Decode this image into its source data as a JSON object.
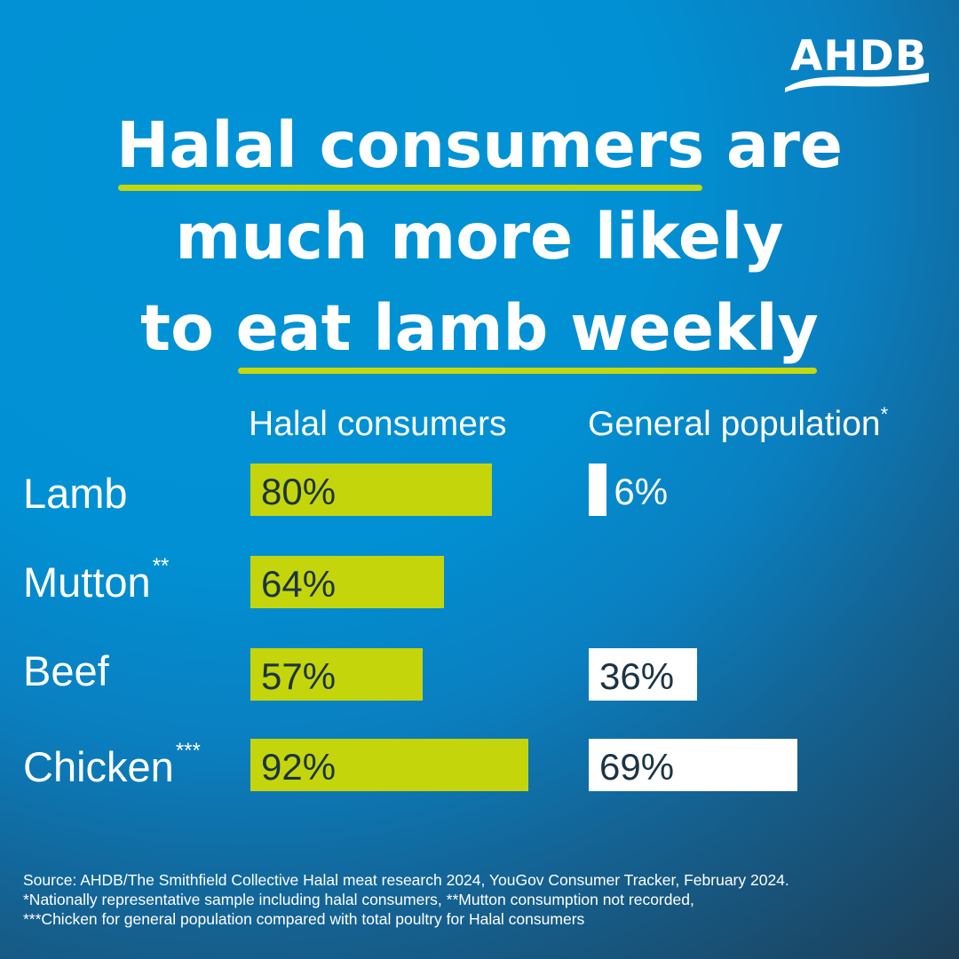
{
  "logo": {
    "text": "AHDB"
  },
  "title": {
    "line1_highlight": "Halal consumers",
    "line1_rest": " are",
    "line2": "much more likely",
    "line3_start": "to ",
    "line3_highlight": "eat lamb weekly"
  },
  "colors": {
    "accent": "#c4d50c",
    "bar_general": "#ffffff",
    "background": "#0193d6",
    "value_text": "#1b3444"
  },
  "chart_data": {
    "type": "bar",
    "orientation": "horizontal",
    "categories": [
      "Lamb",
      "Mutton",
      "Beef",
      "Chicken"
    ],
    "category_marks": [
      "",
      "**",
      "",
      "***"
    ],
    "series": [
      {
        "name": "Halal consumers",
        "values": [
          80,
          64,
          57,
          92
        ],
        "value_labels": [
          "80%",
          "64%",
          "57%",
          "92%"
        ],
        "color": "#c4d50c"
      },
      {
        "name": "General population",
        "name_mark": "*",
        "values": [
          6,
          null,
          36,
          69
        ],
        "value_labels": [
          "6%",
          "",
          "36%",
          "69%"
        ],
        "color": "#ffffff"
      }
    ],
    "unit": "%"
  },
  "footer": {
    "line1": "Source: AHDB/The Smithfield Collective Halal meat research 2024, YouGov Consumer Tracker, February 2024.",
    "line2": "*Nationally representative sample including halal consumers, **Mutton consumption not recorded,",
    "line3": "***Chicken for general population compared with total poultry for Halal consumers"
  }
}
